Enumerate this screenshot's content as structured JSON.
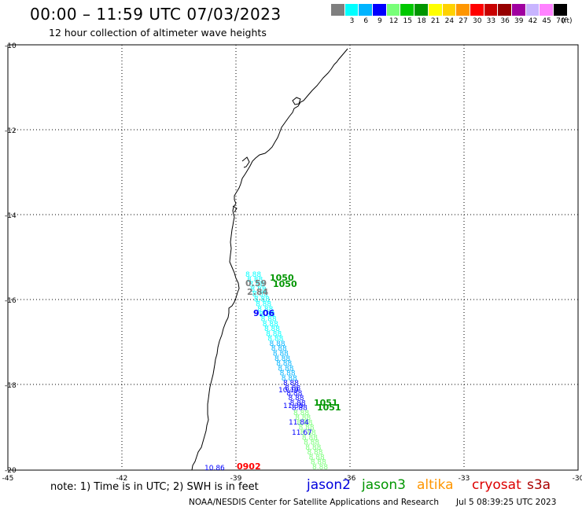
{
  "header": {
    "title": "00:00 – 11:59 UTC 07/03/2023",
    "subtitle": "12 hour collection of altimeter wave heights"
  },
  "legend": {
    "colors": [
      "#7f7f7f",
      "#00ffff",
      "#00b4ff",
      "#0000ff",
      "#78ff78",
      "#00c800",
      "#009600",
      "#ffff00",
      "#ffd200",
      "#ff9600",
      "#ff0000",
      "#c80000",
      "#960000",
      "#a000a0",
      "#c8b4ff",
      "#ff82ff",
      "#000000"
    ],
    "labels": [
      "3",
      "6",
      "9",
      "12",
      "15",
      "18",
      "21",
      "24",
      "27",
      "30",
      "33",
      "36",
      "39",
      "42",
      "45",
      "70"
    ],
    "unit": "(ft)"
  },
  "axes": {
    "lat_labels": [
      "-10",
      "-12",
      "-14",
      "-16",
      "-18",
      "-20"
    ],
    "lon_labels": [
      "-45",
      "-42",
      "-39",
      "-36",
      "-33",
      "-30"
    ]
  },
  "tracks": {
    "labels": [
      {
        "text": "1050",
        "color": "#009600"
      },
      {
        "text": "1050",
        "color": "#009600"
      },
      {
        "text": "0.59",
        "color": "#7f7f7f"
      },
      {
        "text": "2.84",
        "color": "#7f7f7f"
      },
      {
        "text": "9.06",
        "color": "#0000ff"
      },
      {
        "text": "10.19",
        "color": "#0000ff"
      },
      {
        "text": "11.35",
        "color": "#0000ff"
      },
      {
        "text": "11.84",
        "color": "#0000ff"
      },
      {
        "text": "11.67",
        "color": "#0000ff"
      },
      {
        "text": "1051",
        "color": "#009600"
      },
      {
        "text": "1051",
        "color": "#009600"
      },
      {
        "text": "10.86",
        "color": "#0000ff"
      },
      {
        "text": "0902",
        "color": "#ff0000"
      }
    ]
  },
  "footer": {
    "note": "note:  1) Time is in UTC;  2) SWH is in feet",
    "satellites": [
      {
        "name": "jason2",
        "color": "#0000dd"
      },
      {
        "name": "jason3",
        "color": "#009600"
      },
      {
        "name": "altika",
        "color": "#ff9600"
      },
      {
        "name": "cryosat",
        "color": "#dd0000"
      },
      {
        "name": "s3a",
        "color": "#aa0000"
      }
    ],
    "credit": "NOAA/NESDIS Center for Satellite Applications and Research",
    "timestamp": "Jul  5 08:39:25 UTC 2023"
  }
}
